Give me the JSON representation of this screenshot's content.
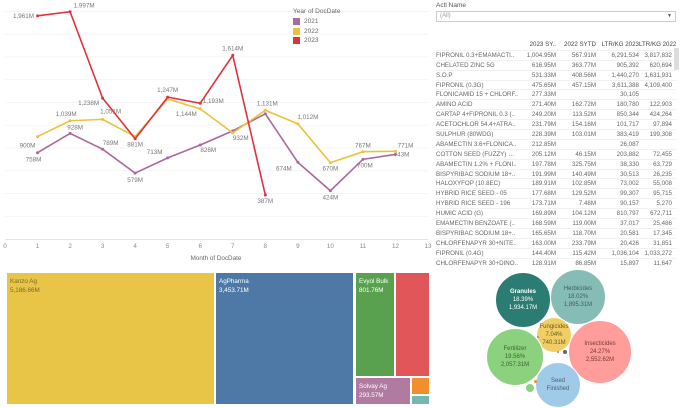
{
  "chart_data": {
    "type": "line",
    "xlabel": "Month of DocDate",
    "ylabel": "",
    "x_ticks": [
      0,
      1,
      2,
      3,
      4,
      5,
      6,
      7,
      8,
      9,
      10,
      11,
      12,
      13
    ],
    "xlim": [
      0,
      13
    ],
    "ylim": [
      0,
      2100
    ],
    "grid": true,
    "legend": {
      "title": "Year of DocDate",
      "placement": "top-right"
    },
    "series": [
      {
        "name": "2021",
        "color": "#a9699d",
        "x": [
          1,
          2,
          3,
          4,
          5,
          6,
          7,
          8,
          9,
          10,
          11,
          12
        ],
        "values": [
          758,
          928,
          789,
          579,
          713,
          826,
          950,
          1100,
          674,
          424,
          700,
          743
        ],
        "labels": [
          "758M",
          "928M",
          "789M",
          "579M",
          "713M",
          "826M",
          null,
          null,
          "674M",
          "424M",
          "700M",
          "743M"
        ]
      },
      {
        "name": "2022",
        "color": "#ebc23a",
        "x": [
          1,
          2,
          3,
          4,
          5,
          6,
          7,
          8,
          9,
          10,
          11,
          12
        ],
        "values": [
          900,
          1039,
          1051,
          900,
          1230,
          1144,
          932,
          1131,
          1012,
          670,
          767,
          771
        ],
        "labels": [
          "900M",
          "1,039M",
          "1,051M",
          null,
          null,
          "1,144M",
          "932M",
          "1,131M",
          "1,012M",
          "670M",
          "767M",
          "771M"
        ]
      },
      {
        "name": "2023",
        "color": "#e0323d",
        "x": [
          1,
          2,
          3,
          4,
          5,
          6,
          7,
          8
        ],
        "values": [
          1961,
          1997,
          1238,
          881,
          1247,
          1193,
          1614,
          387
        ],
        "labels": [
          "1,961M",
          "1,997M",
          "1,238M",
          "881M",
          "1,247M",
          "1,193M",
          "1,614M",
          "387M"
        ]
      }
    ]
  },
  "filter": {
    "label": "Actl Name",
    "value": "(All)"
  },
  "table": {
    "headers": [
      "",
      "2023 SY..",
      "2022 SYTD",
      "LTR/KG 2023",
      "LTR/KG 2022"
    ],
    "rows": [
      [
        "FIPRONIL 0.3+EMAMACTI..",
        "1,004.95M",
        "567.91M",
        "6,291,534",
        "3,817,832"
      ],
      [
        "CHELATED ZINC 5G",
        "616.95M",
        "363.77M",
        "905,392",
        "620,694"
      ],
      [
        "S.O.P",
        "531.33M",
        "408.56M",
        "1,440,270",
        "1,631,931"
      ],
      [
        "FIPRONIL (0.3G)",
        "475.65M",
        "457.15M",
        "3,611,388",
        "4,109,400"
      ],
      [
        "FLONICAMID 15 + CHLORF..",
        "277.33M",
        "",
        "30,105",
        ""
      ],
      [
        "AMINO ACID",
        "271.40M",
        "162.72M",
        "180,780",
        "122,903"
      ],
      [
        "CARTAP 4+FIPRONIL 0.3 (..",
        "249.20M",
        "113.52M",
        "850,344",
        "424,264"
      ],
      [
        "ACETOCHLOR 54.4+ATRA..",
        "231.79M",
        "154.16M",
        "101,717",
        "97,894"
      ],
      [
        "SULPHUR (80WDG)",
        "228.39M",
        "103.01M",
        "383,419",
        "199,308"
      ],
      [
        "ABAMECTIN 3.6+FLONICA..",
        "212.85M",
        "",
        "26,087",
        ""
      ],
      [
        "COTTON SEED (FUZZY) KZ..",
        "205.12M",
        "46.15M",
        "203,882",
        "72,455"
      ],
      [
        "ABAMECTIN 1.2% + FLONI..",
        "197.78M",
        "325.75M",
        "38,330",
        "63,729"
      ],
      [
        "BISPYRIBAC SODIUM 18+..",
        "191.99M",
        "140.49M",
        "30,513",
        "26,235"
      ],
      [
        "HALOXYFOP (10.8EC)",
        "189.91M",
        "102.85M",
        "73,002",
        "55,008"
      ],
      [
        "HYBRID RICE SEED - 05",
        "177.68M",
        "129.52M",
        "99,307",
        "95,715"
      ],
      [
        "HYBRID RICE SEED - 196",
        "173.71M",
        "7.48M",
        "90,157",
        "5,270"
      ],
      [
        "HUMIC ACID (G)",
        "169.89M",
        "104.12M",
        "810,797",
        "672,711"
      ],
      [
        "EMAMECTIN BENZOATE (..",
        "168.59M",
        "119.00M",
        "37,017",
        "25,486"
      ],
      [
        "BISPYRIBAC SODIUM 18+..",
        "165.65M",
        "118.70M",
        "20,581",
        "17,345"
      ],
      [
        "CHLORFENAPYR 30+NITE..",
        "163.00M",
        "233.79M",
        "20,426",
        "31,851"
      ],
      [
        "FIPRONIL (0.4G)",
        "144.40M",
        "115.42M",
        "1,036,104",
        "1,033,272"
      ],
      [
        "CHLORFENAPYR 30+DINO..",
        "128.91M",
        "86.85M",
        "15,897",
        "11,647"
      ]
    ]
  },
  "treemap": [
    {
      "name": "Kanzo Ag",
      "value": "5,186.66M",
      "color": "#e8c547",
      "text_color": "#7a6a2a"
    },
    {
      "name": "AgPharma",
      "value": "3,453.71M",
      "color": "#4e79a7",
      "text_color": "#ffffff"
    },
    {
      "name": "Evyol Bulk",
      "value": "801.76M",
      "color": "#59a14f",
      "text_color": "#ffffff"
    },
    {
      "name": "",
      "value": "",
      "color": "#e15759",
      "text_color": "#ffffff"
    },
    {
      "name": "Solvay Ag",
      "value": "293.57M",
      "color": "#b07aa1",
      "text_color": "#ffffff"
    },
    {
      "name": "",
      "value": "",
      "color": "#f28e2b",
      "text_color": "#ffffff"
    },
    {
      "name": "",
      "value": "",
      "color": "#76b7b2",
      "text_color": "#ffffff"
    }
  ],
  "bubbles": [
    {
      "name": "Granules",
      "pct": "18.39%",
      "value": "1,934.17M",
      "color": "#2b7d74",
      "text_color": "#ffffff"
    },
    {
      "name": "Herbicides",
      "pct": "18.02%",
      "value": "1,895.31M",
      "color": "#86bcb6",
      "text_color": "#3f5f5c"
    },
    {
      "name": "Fungicides",
      "pct": "7.04%",
      "value": "740.31M",
      "color": "#f1ce63",
      "text_color": "#6a5a20"
    },
    {
      "name": "Insecticides",
      "pct": "24.27%",
      "value": "2,552.62M",
      "color": "#ff9d9a",
      "text_color": "#7a3a3a"
    },
    {
      "name": "Fertilizer",
      "pct": "19.56%",
      "value": "2,057.31M",
      "color": "#8cd17d",
      "text_color": "#3f5f35"
    },
    {
      "name": "Seed Finished",
      "pct": "",
      "value": "",
      "color": "#a0cbe8",
      "text_color": "#4a5f70"
    }
  ]
}
